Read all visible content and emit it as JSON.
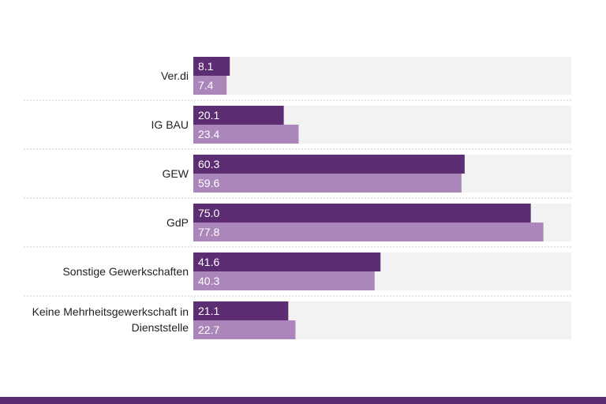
{
  "chart_data": {
    "type": "bar",
    "orientation": "horizontal",
    "categories": [
      "Ver.di",
      "IG BAU",
      "GEW",
      "GdP",
      "Sonstige Gewerkschaften",
      "Keine Mehrheitsgewerkschaft in Dienststelle"
    ],
    "category_lines": [
      [
        "Ver.di"
      ],
      [
        "IG BAU"
      ],
      [
        "GEW"
      ],
      [
        "GdP"
      ],
      [
        "Sonstige Gewerkschaften"
      ],
      [
        "Keine Mehrheitsgewerkschaft in",
        "Dienststelle"
      ]
    ],
    "series": [
      {
        "values": [
          8.1,
          20.1,
          60.3,
          75.0,
          41.6,
          21.1
        ],
        "labels": [
          "8.1",
          "20.1",
          "60.3",
          "75.0",
          "41.6",
          "21.1"
        ],
        "color": "#5c2d72"
      },
      {
        "values": [
          7.4,
          23.4,
          59.6,
          77.8,
          40.3,
          22.7
        ],
        "labels": [
          "7.4",
          "23.4",
          "59.6",
          "77.8",
          "40.3",
          "22.7"
        ],
        "color": "#aa86ba"
      }
    ],
    "xlim": [
      0,
      84
    ],
    "grid": false,
    "legend": "none",
    "background_color": "#f2f2f2"
  },
  "colors": {
    "footer": "#5c2d72"
  }
}
